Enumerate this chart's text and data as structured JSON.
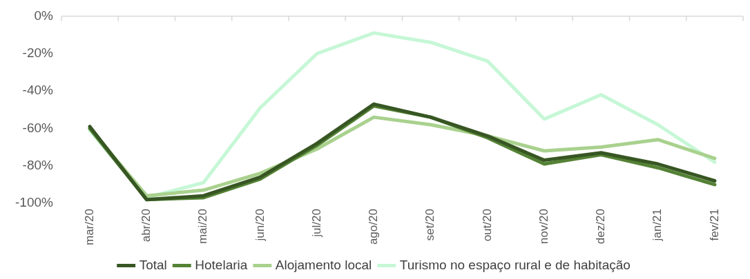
{
  "chart_data": {
    "type": "line",
    "categories": [
      "mar/20",
      "abr/20",
      "mai/20",
      "jun/20",
      "jul/20",
      "ago/20",
      "set/20",
      "out/20",
      "nov/20",
      "dez/20",
      "jan/21",
      "fev/21"
    ],
    "series": [
      {
        "name": "Total",
        "color": "#375623",
        "values": [
          -59,
          -98,
          -96,
          -86,
          -68,
          -47,
          -54,
          -64,
          -77,
          -73,
          -79,
          -88
        ]
      },
      {
        "name": "Hotelaria",
        "color": "#548235",
        "values": [
          -60,
          -98,
          -97,
          -87,
          -69,
          -48,
          -54,
          -65,
          -79,
          -74,
          -81,
          -90
        ]
      },
      {
        "name": "Alojamento local",
        "color": "#a9d18e",
        "values": [
          -60,
          -96,
          -93,
          -84,
          -71,
          -54,
          -58,
          -64,
          -72,
          -70,
          -66,
          -76
        ]
      },
      {
        "name": "Turismo no espaço rural e de habitação",
        "color": "#c6f7d6",
        "values": [
          -61,
          -97,
          -89,
          -49,
          -20,
          -9,
          -14,
          -24,
          -55,
          -42,
          -58,
          -78
        ]
      }
    ],
    "ylim": [
      -100,
      0
    ],
    "yticks": [
      {
        "value": 0,
        "label": "0%"
      },
      {
        "value": -20,
        "label": "-20%"
      },
      {
        "value": -40,
        "label": "-40%"
      },
      {
        "value": -60,
        "label": "-60%"
      },
      {
        "value": -80,
        "label": "-80%"
      },
      {
        "value": -100,
        "label": "-100%"
      }
    ],
    "grid": false,
    "legend": "bottom",
    "marker": "none",
    "line_style": "solid"
  }
}
